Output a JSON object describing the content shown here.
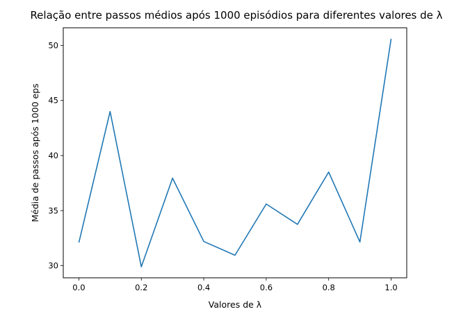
{
  "chart_data": {
    "type": "line",
    "title": "Relação entre passos médios após 1000 episódios para diferentes valores de λ",
    "xlabel": "Valores de λ",
    "ylabel": "Média de passos após 1000 eps",
    "x": [
      0.0,
      0.1,
      0.2,
      0.3,
      0.4,
      0.5,
      0.6,
      0.7,
      0.8,
      0.9,
      1.0
    ],
    "series": [
      {
        "values": [
          32.1,
          44.0,
          29.9,
          37.95,
          32.2,
          30.95,
          35.6,
          33.75,
          38.5,
          32.15,
          50.6
        ]
      }
    ],
    "xlim": [
      -0.05,
      1.05
    ],
    "ylim": [
      28.9,
      51.6
    ],
    "xticks": [
      "0.0",
      "0.2",
      "0.4",
      "0.6",
      "0.8",
      "1.0"
    ],
    "xtick_values": [
      0.0,
      0.2,
      0.4,
      0.6,
      0.8,
      1.0
    ],
    "yticks": [
      "30",
      "35",
      "40",
      "45",
      "50"
    ],
    "ytick_values": [
      30,
      35,
      40,
      45,
      50
    ],
    "grid": false,
    "legend": "none",
    "line_color": "#1f77b4"
  }
}
